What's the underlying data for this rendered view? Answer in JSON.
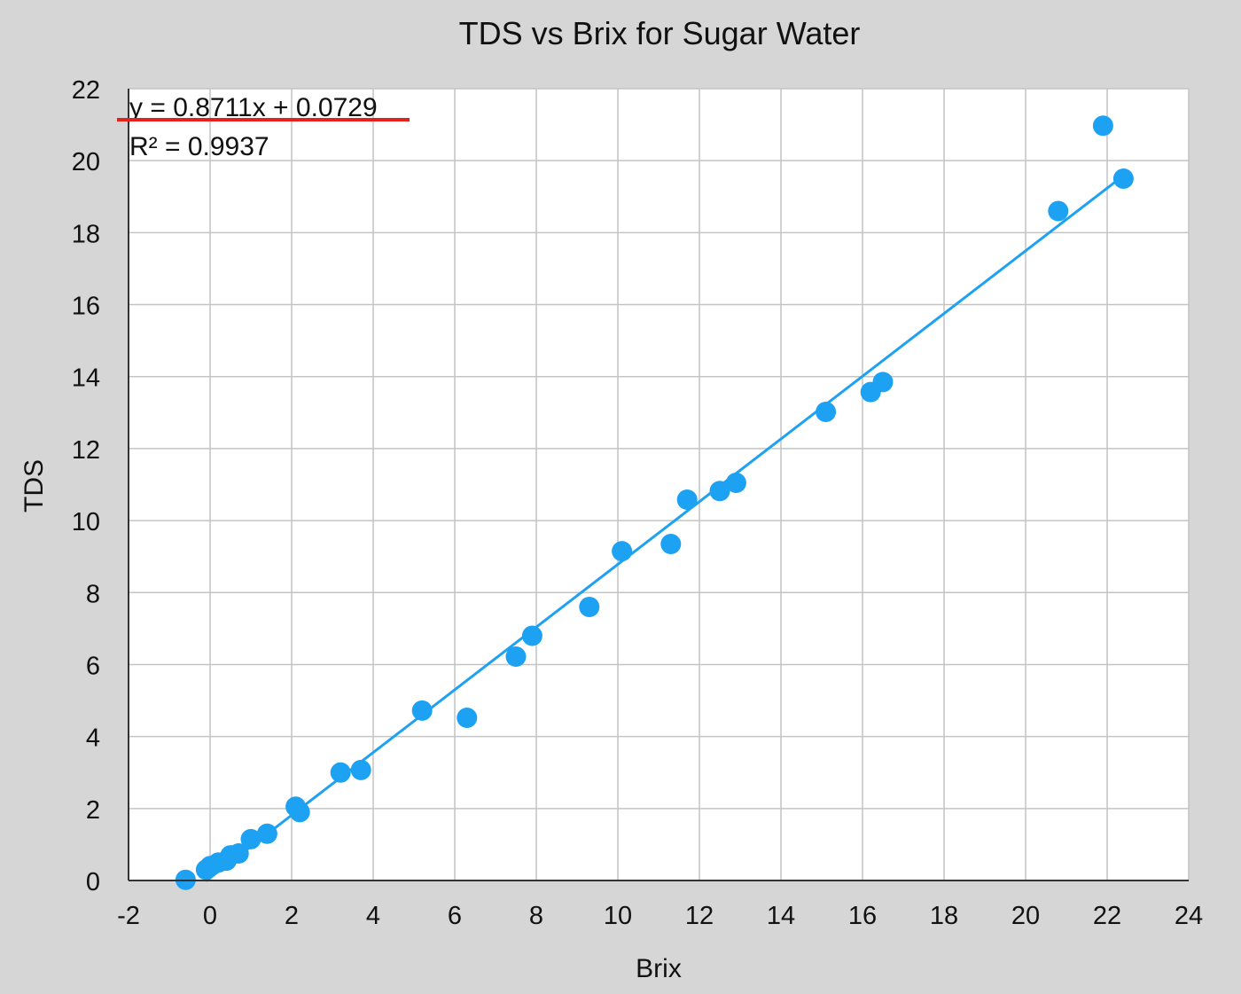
{
  "chart_data": {
    "type": "scatter",
    "title": "TDS vs Brix for Sugar Water",
    "xlabel": "Brix",
    "ylabel": "TDS",
    "xlim": [
      -2,
      24
    ],
    "ylim": [
      0,
      22
    ],
    "x_ticks": [
      -2,
      0,
      2,
      4,
      6,
      8,
      10,
      12,
      14,
      16,
      18,
      20,
      22,
      24
    ],
    "y_ticks": [
      0,
      2,
      4,
      6,
      8,
      10,
      12,
      14,
      16,
      18,
      20,
      22
    ],
    "grid": true,
    "legend": "none",
    "series": [
      {
        "color": "#1da1f2",
        "points": [
          {
            "x": -0.6,
            "y": 0.02
          },
          {
            "x": -0.1,
            "y": 0.3
          },
          {
            "x": 0.0,
            "y": 0.4
          },
          {
            "x": 0.2,
            "y": 0.5
          },
          {
            "x": 0.4,
            "y": 0.55
          },
          {
            "x": 0.5,
            "y": 0.7
          },
          {
            "x": 0.7,
            "y": 0.75
          },
          {
            "x": 1.0,
            "y": 1.15
          },
          {
            "x": 1.4,
            "y": 1.3
          },
          {
            "x": 2.1,
            "y": 2.05
          },
          {
            "x": 2.2,
            "y": 1.9
          },
          {
            "x": 3.2,
            "y": 3.0
          },
          {
            "x": 3.7,
            "y": 3.07
          },
          {
            "x": 5.2,
            "y": 4.72
          },
          {
            "x": 6.3,
            "y": 4.52
          },
          {
            "x": 7.5,
            "y": 6.22
          },
          {
            "x": 7.9,
            "y": 6.8
          },
          {
            "x": 9.3,
            "y": 7.6
          },
          {
            "x": 10.1,
            "y": 9.15
          },
          {
            "x": 11.3,
            "y": 9.35
          },
          {
            "x": 11.7,
            "y": 10.58
          },
          {
            "x": 12.5,
            "y": 10.82
          },
          {
            "x": 12.9,
            "y": 11.05
          },
          {
            "x": 15.1,
            "y": 13.02
          },
          {
            "x": 16.2,
            "y": 13.57
          },
          {
            "x": 16.5,
            "y": 13.85
          },
          {
            "x": 20.8,
            "y": 18.6
          },
          {
            "x": 21.9,
            "y": 20.97
          },
          {
            "x": 22.4,
            "y": 19.5
          }
        ]
      }
    ],
    "trendline": {
      "slope": 0.8711,
      "intercept": 0.0729,
      "x_start": -0.1,
      "x_end": 22.4,
      "color": "#1da1f2"
    },
    "annotations": {
      "equation": "y = 0.8711x + 0.0729",
      "r_squared": "R² = 0.9937",
      "underline_color": "#e0231c"
    }
  }
}
